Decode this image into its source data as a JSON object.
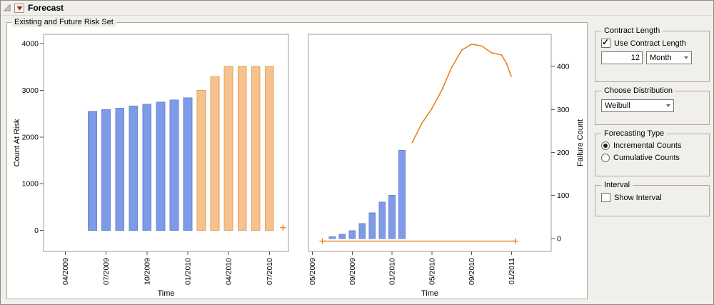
{
  "window": {
    "title": "Forecast"
  },
  "group_box": {
    "title": "Existing and Future Risk Set"
  },
  "controls": {
    "contract_length": {
      "title": "Contract Length",
      "checkbox_label": "Use Contract Length",
      "checkbox_checked": true,
      "value": "12",
      "unit": "Month"
    },
    "distribution": {
      "title": "Choose Distribution",
      "selected": "Weibull"
    },
    "forecasting_type": {
      "title": "Forecasting Type",
      "options": [
        {
          "label": "Incremental Counts",
          "selected": true
        },
        {
          "label": "Cumulative Counts",
          "selected": false
        }
      ]
    },
    "interval": {
      "title": "Interval",
      "checkbox_label": "Show Interval",
      "checkbox_checked": false
    }
  },
  "icons": {
    "disclosure": "open-triangle",
    "red_triangle_menu": "red-down-triangle",
    "dropdown_arrow": "down-chevron",
    "checkbox_check": "check-mark"
  },
  "colors": {
    "existing_bars": "#7D9BE6",
    "future_bars": "#F6C18B",
    "forecast_line": "#E8821E",
    "background": "#F0EFEB"
  },
  "chart_data": [
    {
      "type": "bar",
      "title": "Existing and Future Risk Set - Count At Risk",
      "xlabel": "Time",
      "ylabel": "Count At Risk",
      "x_unit": "month index from 04/2009",
      "xlim": [
        -1.6,
        16.4
      ],
      "ylim": [
        -450,
        4200
      ],
      "grid": false,
      "yticks": [
        {
          "v": 0,
          "label": "0"
        },
        {
          "v": 1000,
          "label": "1000"
        },
        {
          "v": 2000,
          "label": "2000"
        },
        {
          "v": 3000,
          "label": "3000"
        },
        {
          "v": 4000,
          "label": "4000"
        }
      ],
      "xticks": [
        {
          "v": 0,
          "label": "04/2009"
        },
        {
          "v": 3,
          "label": "07/2009"
        },
        {
          "v": 6,
          "label": "10/2009"
        },
        {
          "v": 9,
          "label": "01/2010"
        },
        {
          "v": 12,
          "label": "04/2010"
        },
        {
          "v": 15,
          "label": "07/2010"
        }
      ],
      "series": [
        {
          "name": "existing-risk-bars",
          "type": "bar",
          "color": "#7D9BE6",
          "stroke": "#6a87cc",
          "bar_width": 0.62,
          "points": [
            [
              2,
              2550
            ],
            [
              3,
              2590
            ],
            [
              4,
              2620
            ],
            [
              5,
              2660
            ],
            [
              6,
              2700
            ],
            [
              7,
              2750
            ],
            [
              8,
              2790
            ],
            [
              9,
              2840
            ]
          ]
        },
        {
          "name": "future-risk-bars",
          "type": "bar",
          "color": "#F6C18B",
          "stroke": "#e3a262",
          "bar_width": 0.62,
          "points": [
            [
              10,
              3000
            ],
            [
              11,
              3290
            ],
            [
              12,
              3510
            ],
            [
              13,
              3510
            ],
            [
              14,
              3510
            ],
            [
              15,
              3510
            ]
          ]
        },
        {
          "name": "future-risk-marker",
          "type": "plus",
          "color": "#E8821E",
          "points": [
            [
              16,
              60
            ]
          ]
        }
      ]
    },
    {
      "type": "combo",
      "title": "Existing and Future Risk Set - Failure Count",
      "xlabel": "Time",
      "ylabel": "Failure Count",
      "y_axis_side": "right",
      "x_unit": "month index from 05/2009",
      "xlim": [
        -0.4,
        24
      ],
      "ylim": [
        -30,
        475
      ],
      "grid": false,
      "yticks": [
        {
          "v": 0,
          "label": "0"
        },
        {
          "v": 100,
          "label": "100"
        },
        {
          "v": 200,
          "label": "200"
        },
        {
          "v": 300,
          "label": "300"
        },
        {
          "v": 400,
          "label": "400"
        }
      ],
      "xticks": [
        {
          "v": 0,
          "label": "05/2009"
        },
        {
          "v": 4,
          "label": "09/2009"
        },
        {
          "v": 8,
          "label": "01/2010"
        },
        {
          "v": 12,
          "label": "05/2010"
        },
        {
          "v": 16,
          "label": "09/2010"
        },
        {
          "v": 20,
          "label": "01/2011"
        }
      ],
      "series": [
        {
          "name": "observed-failure-bars",
          "type": "bar",
          "color": "#7D9BE6",
          "stroke": "#6a87cc",
          "bar_width": 0.62,
          "points": [
            [
              2,
              4
            ],
            [
              3,
              10
            ],
            [
              4,
              18
            ],
            [
              5,
              35
            ],
            [
              6,
              60
            ],
            [
              7,
              85
            ],
            [
              8,
              100
            ],
            [
              9,
              205
            ]
          ]
        },
        {
          "name": "forecast-line",
          "type": "line",
          "color": "#E8821E",
          "width": 1.6,
          "points": [
            [
              10,
              222
            ],
            [
              11,
              268
            ],
            [
              12,
              302
            ],
            [
              13,
              345
            ],
            [
              14,
              398
            ],
            [
              15,
              438
            ],
            [
              16,
              452
            ],
            [
              17,
              448
            ],
            [
              18,
              432
            ],
            [
              19,
              427
            ],
            [
              19.5,
              408
            ],
            [
              20,
              376
            ]
          ]
        },
        {
          "name": "zero-baseline",
          "type": "line",
          "color": "#E8821E",
          "width": 1.4,
          "points": [
            [
              1,
              -6
            ],
            [
              20.4,
              -6
            ]
          ]
        },
        {
          "name": "zero-baseline-markers",
          "type": "plus",
          "color": "#E8821E",
          "points": [
            [
              1,
              -6
            ],
            [
              20.4,
              -6
            ]
          ]
        }
      ]
    }
  ]
}
